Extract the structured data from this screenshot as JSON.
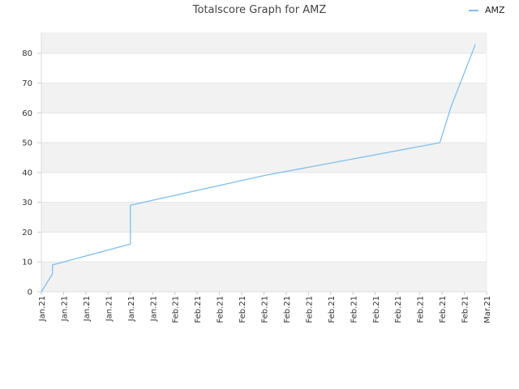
{
  "chart_data": {
    "type": "line",
    "title": "Totalscore Graph for AMZ",
    "legend": {
      "placement": "top-right",
      "entries": [
        "AMZ"
      ]
    },
    "xlabel": "",
    "ylabel": "",
    "ylim": [
      0,
      87
    ],
    "yticks": [
      0,
      10,
      20,
      30,
      40,
      50,
      60,
      70,
      80
    ],
    "xtick_labels": [
      "Jan.21",
      "Jan.21",
      "Jan.21",
      "Jan.21",
      "Jan.21",
      "Jan.21",
      "Feb.21",
      "Feb.21",
      "Feb.21",
      "Feb.21",
      "Feb.21",
      "Feb.21",
      "Feb.21",
      "Feb.21",
      "Feb.21",
      "Feb.21",
      "Feb.21",
      "Feb.21",
      "Feb.21",
      "Feb.21",
      "Mar.21"
    ],
    "grid": true,
    "colors": {
      "series": "#7fbfef",
      "band": "#f2f2f2",
      "plot_bg": "#ffffff"
    },
    "series": [
      {
        "name": "AMZ",
        "x": [
          0,
          0.5,
          0.5,
          4.0,
          4.0,
          10.0,
          17.9,
          18.4,
          19.5
        ],
        "y": [
          0,
          6,
          9,
          16,
          29,
          39,
          50,
          62,
          83
        ]
      }
    ]
  }
}
